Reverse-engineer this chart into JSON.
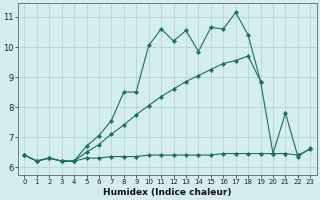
{
  "xlabel": "Humidex (Indice chaleur)",
  "bg_color": "#d4eeee",
  "grid_color": "#b8d8d8",
  "line_color": "#1a6e64",
  "xlim": [
    -0.5,
    23.5
  ],
  "ylim": [
    5.75,
    11.45
  ],
  "yticks": [
    6,
    7,
    8,
    9,
    10,
    11
  ],
  "xticks": [
    0,
    1,
    2,
    3,
    4,
    5,
    6,
    7,
    8,
    9,
    10,
    11,
    12,
    13,
    14,
    15,
    16,
    17,
    18,
    19,
    20,
    21,
    22,
    23
  ],
  "line1_x": [
    0,
    1,
    2,
    3,
    4,
    5,
    6,
    7,
    8,
    9,
    10,
    11,
    12,
    13,
    14,
    15,
    16,
    17,
    18,
    19,
    20,
    21,
    22,
    23
  ],
  "line1_y": [
    6.4,
    6.2,
    6.3,
    6.2,
    6.2,
    6.3,
    6.3,
    6.35,
    6.35,
    6.35,
    6.4,
    6.4,
    6.4,
    6.4,
    6.4,
    6.4,
    6.45,
    6.45,
    6.45,
    6.45,
    6.45,
    6.45,
    6.4,
    6.6
  ],
  "line2_x": [
    0,
    1,
    2,
    3,
    4,
    5,
    6,
    7,
    8,
    9,
    10,
    11,
    12,
    13,
    14,
    15,
    16,
    17,
    18,
    19,
    20,
    21,
    22,
    23
  ],
  "line2_y": [
    6.4,
    6.2,
    6.3,
    6.2,
    6.2,
    6.7,
    7.05,
    7.55,
    8.5,
    8.5,
    10.05,
    10.6,
    10.2,
    10.55,
    9.85,
    10.65,
    10.6,
    11.15,
    10.4,
    8.85,
    6.45,
    7.8,
    6.35,
    6.62
  ],
  "line3_x": [
    0,
    1,
    2,
    3,
    4,
    5,
    6,
    7,
    8,
    9,
    10,
    11,
    12,
    13,
    14,
    15,
    16,
    17,
    18,
    19
  ],
  "line3_y": [
    6.4,
    6.2,
    6.3,
    6.2,
    6.2,
    6.5,
    6.75,
    7.1,
    7.4,
    7.75,
    8.05,
    8.35,
    8.6,
    8.85,
    9.05,
    9.25,
    9.45,
    9.55,
    9.7,
    8.85
  ]
}
